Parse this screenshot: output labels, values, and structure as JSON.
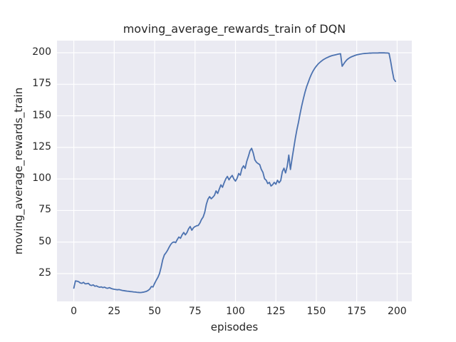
{
  "chart_data": {
    "type": "line",
    "title": "moving_average_rewards_train of DQN",
    "xlabel": "episodes",
    "ylabel": "moving_average_rewards_train",
    "x_ticks": [
      0,
      25,
      50,
      75,
      100,
      125,
      150,
      175,
      200
    ],
    "y_ticks": [
      25,
      50,
      75,
      100,
      125,
      150,
      175,
      200
    ],
    "xlim": [
      -10.4,
      209.1
    ],
    "ylim": [
      3.0,
      209.6
    ],
    "grid": true,
    "legend": false,
    "colors": {
      "line": "#4C72B0",
      "axes_background": "#EAEAF2",
      "gridline": "#FFFFFF",
      "figure_background": "#FFFFFF",
      "text": "#262626"
    },
    "series": [
      {
        "name": "DQN moving average rewards (train)",
        "x": [
          0,
          1,
          2,
          3,
          4,
          5,
          6,
          7,
          8,
          9,
          10,
          11,
          12,
          13,
          14,
          15,
          16,
          17,
          18,
          19,
          20,
          21,
          22,
          23,
          24,
          25,
          26,
          27,
          28,
          29,
          30,
          31,
          32,
          33,
          34,
          35,
          36,
          37,
          38,
          39,
          40,
          41,
          42,
          43,
          44,
          45,
          46,
          47,
          48,
          49,
          50,
          51,
          52,
          53,
          54,
          55,
          56,
          57,
          58,
          59,
          60,
          61,
          62,
          63,
          64,
          65,
          66,
          67,
          68,
          69,
          70,
          71,
          72,
          73,
          74,
          75,
          76,
          77,
          78,
          79,
          80,
          81,
          82,
          83,
          84,
          85,
          86,
          87,
          88,
          89,
          90,
          91,
          92,
          93,
          94,
          95,
          96,
          97,
          98,
          99,
          100,
          101,
          102,
          103,
          104,
          105,
          106,
          107,
          108,
          109,
          110,
          111,
          112,
          113,
          114,
          115,
          116,
          117,
          118,
          119,
          120,
          121,
          122,
          123,
          124,
          125,
          126,
          127,
          128,
          129,
          130,
          131,
          132,
          133,
          134,
          135,
          136,
          137,
          138,
          139,
          140,
          141,
          142,
          143,
          144,
          145,
          146,
          147,
          148,
          149,
          150,
          151,
          152,
          153,
          154,
          155,
          156,
          157,
          158,
          159,
          160,
          161,
          162,
          163,
          164,
          165,
          166,
          167,
          168,
          169,
          170,
          171,
          172,
          173,
          174,
          175,
          176,
          177,
          178,
          179,
          180,
          181,
          182,
          183,
          184,
          185,
          186,
          187,
          188,
          189,
          190,
          191,
          192,
          193,
          194,
          195,
          196,
          197,
          198,
          199
        ],
        "y": [
          13.5,
          19.2,
          19.0,
          18.6,
          17.6,
          17.3,
          18.1,
          16.9,
          17.0,
          17.3,
          16.0,
          15.6,
          16.1,
          15.0,
          15.3,
          14.6,
          14.2,
          14.5,
          13.9,
          14.3,
          13.6,
          13.4,
          13.9,
          13.3,
          12.9,
          12.6,
          12.4,
          12.2,
          12.4,
          12.0,
          11.7,
          11.5,
          11.3,
          11.1,
          11.0,
          10.8,
          10.7,
          10.5,
          10.4,
          10.2,
          10.1,
          10.0,
          10.1,
          10.3,
          10.6,
          11.0,
          11.7,
          12.8,
          14.8,
          14.4,
          17.3,
          19.8,
          22.0,
          25.0,
          30.0,
          36.0,
          39.8,
          41.5,
          43.5,
          46.0,
          48.2,
          49.6,
          50.1,
          49.5,
          52.0,
          54.0,
          53.0,
          55.7,
          57.6,
          55.7,
          57.5,
          60.5,
          62.3,
          59.4,
          61.3,
          62.3,
          62.9,
          63.2,
          65.1,
          67.9,
          69.8,
          73.6,
          80.0,
          84.0,
          86.0,
          84.3,
          85.5,
          87.0,
          90.5,
          88.5,
          92.0,
          95.3,
          93.4,
          97.0,
          100.0,
          102.0,
          99.3,
          101.3,
          102.8,
          100.0,
          98.3,
          100.5,
          104.3,
          103.0,
          108.3,
          110.4,
          108.3,
          114.0,
          117.9,
          122.3,
          124.3,
          120.5,
          115.1,
          113.2,
          112.2,
          111.4,
          107.5,
          105.2,
          100.2,
          99.0,
          96.3,
          97.3,
          94.4,
          95.5,
          97.3,
          95.8,
          99.0,
          97.0,
          98.7,
          105.7,
          108.5,
          104.8,
          110.0,
          118.9,
          107.5,
          116.0,
          124.0,
          132.0,
          139.0,
          145.0,
          151.8,
          158.0,
          163.5,
          168.6,
          173.0,
          176.5,
          180.0,
          183.0,
          185.5,
          187.6,
          189.3,
          190.9,
          192.1,
          193.2,
          194.2,
          195.0,
          195.7,
          196.3,
          196.9,
          197.4,
          197.8,
          198.1,
          198.4,
          198.7,
          199.0,
          199.2,
          189.3,
          191.2,
          193.0,
          194.5,
          195.5,
          196.3,
          196.9,
          197.4,
          197.9,
          198.3,
          198.6,
          198.9,
          199.1,
          199.3,
          199.4,
          199.5,
          199.6,
          199.7,
          199.7,
          199.8,
          199.8,
          199.8,
          199.8,
          199.9,
          199.9,
          199.9,
          199.9,
          199.8,
          199.8,
          199.6,
          193.2,
          185.7,
          179.1,
          177.3
        ]
      }
    ]
  }
}
